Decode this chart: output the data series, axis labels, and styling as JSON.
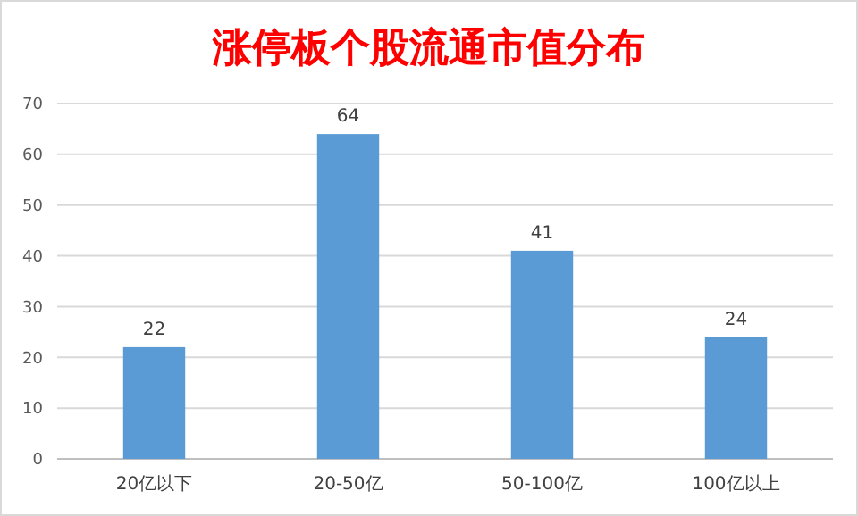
{
  "chart_data": {
    "type": "bar",
    "title": "涨停板个股流通市值分布",
    "categories": [
      "20亿以下",
      "20-50亿",
      "50-100亿",
      "100亿以上"
    ],
    "values": [
      22,
      64,
      41,
      24
    ],
    "color": "#5b9bd5",
    "ylim": [
      0,
      70
    ],
    "yticks": [
      0,
      10,
      20,
      30,
      40,
      50,
      60,
      70
    ],
    "grid": "y",
    "data_labels": true
  }
}
